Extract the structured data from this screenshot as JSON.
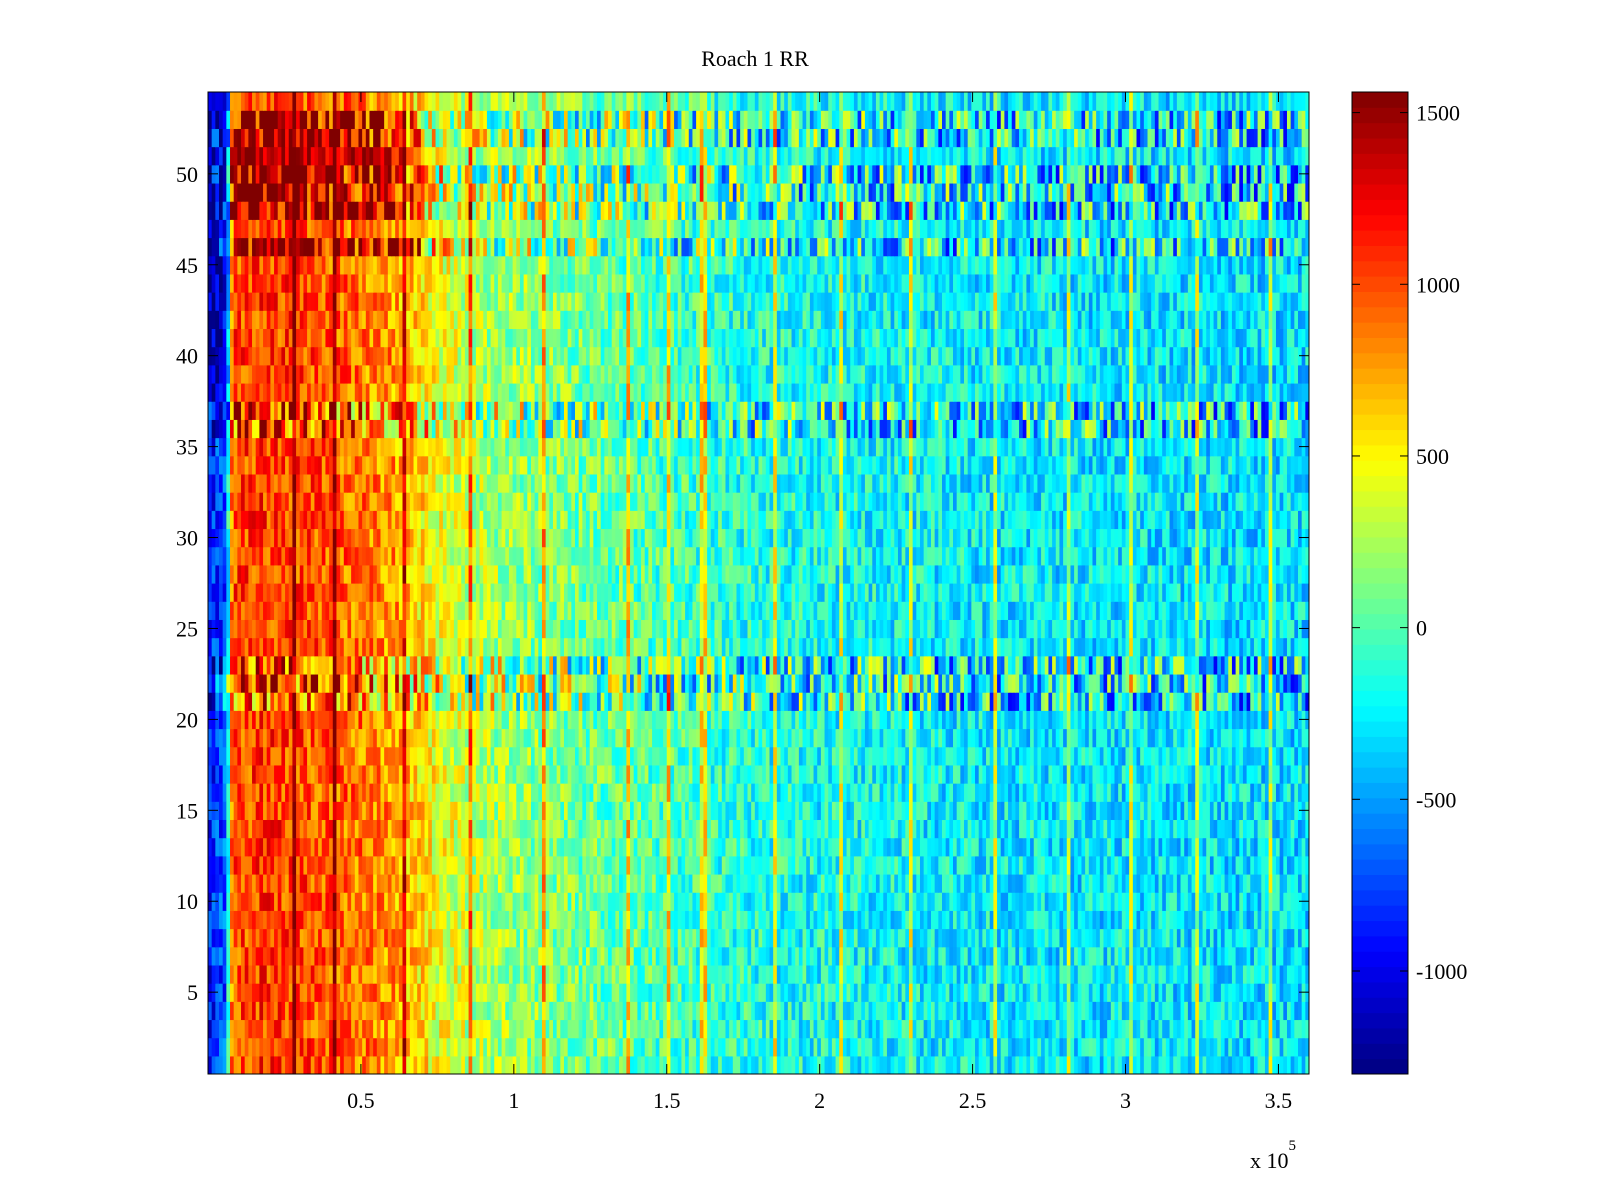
{
  "chart_data": {
    "type": "heatmap",
    "title": "Roach 1 RR",
    "xlabel": "",
    "ylabel": "",
    "x_multiplier_label": "x 10",
    "x_multiplier_exponent": "5",
    "xlim": [
      0,
      360000
    ],
    "ylim": [
      0.5,
      54.5
    ],
    "x_ticks": [
      50000,
      100000,
      150000,
      200000,
      250000,
      300000,
      350000
    ],
    "x_tick_labels": [
      "0.5",
      "1",
      "1.5",
      "2",
      "2.5",
      "3",
      "3.5"
    ],
    "y_ticks": [
      5,
      10,
      15,
      20,
      25,
      30,
      35,
      40,
      45,
      50
    ],
    "y_tick_labels": [
      "5",
      "10",
      "15",
      "20",
      "25",
      "30",
      "35",
      "40",
      "45",
      "50"
    ],
    "rows": 54,
    "colormap": "jet",
    "clim": [
      -1300,
      1560
    ],
    "colorbar_ticks": [
      -1000,
      -500,
      0,
      500,
      1000,
      1500
    ],
    "colorbar_tick_labels": [
      "-1000",
      "-500",
      "0",
      "500",
      "1000",
      "1500"
    ],
    "mean_profile": {
      "x": [
        0,
        6000,
        8000,
        20000,
        40000,
        60000,
        66000,
        75000,
        90000,
        120000,
        180000,
        250000,
        360000
      ],
      "value": [
        -900,
        -700,
        1000,
        1050,
        950,
        800,
        650,
        450,
        250,
        100,
        -150,
        -250,
        -300
      ]
    },
    "highlight_rows": {
      "dark_red_top": [
        46,
        48,
        49,
        50,
        51,
        52,
        53
      ],
      "noisy_bands": [
        21,
        22,
        23,
        36,
        37,
        46,
        48,
        49,
        50,
        52,
        53
      ]
    },
    "vertical_streak_x": [
      28000,
      41000,
      64000,
      86000,
      110000,
      137000,
      151000,
      162000,
      185000,
      207000,
      230000,
      257000,
      281000,
      302000,
      323000,
      347000
    ]
  }
}
